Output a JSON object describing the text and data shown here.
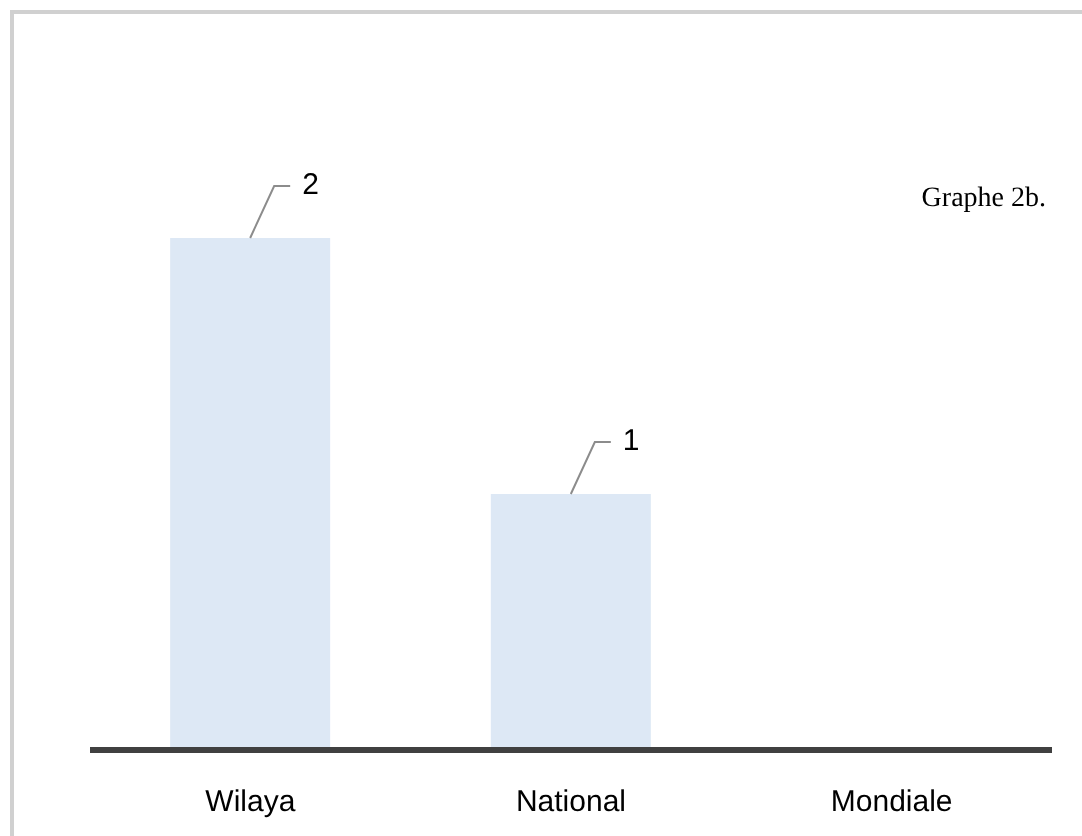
{
  "chart_data": {
    "type": "bar",
    "categories": [
      "Wilaya",
      "National",
      "Mondiale"
    ],
    "values": [
      2,
      1,
      null
    ],
    "color": "#dde8f5",
    "data_labels": true,
    "annotations": [
      "Graphe 2b."
    ]
  }
}
